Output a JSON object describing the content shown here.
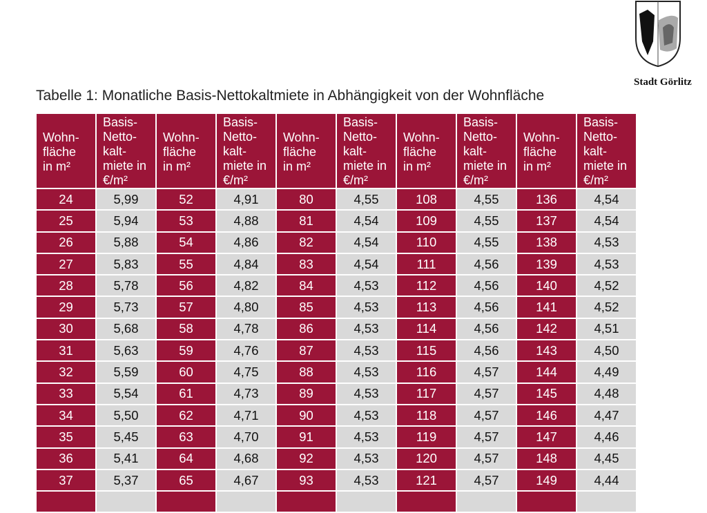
{
  "logo": {
    "text": "Stadt Görlitz"
  },
  "title": "Tabelle 1: Monatliche Basis-Nettokaltmiete in Abhängigkeit von der Wohnfläche",
  "table": {
    "headers": [
      "Wohn-fläche in m²",
      "Basis-Netto-kalt-miete in €/m²"
    ],
    "header_area_lines": [
      "Wohn-",
      "fläche",
      "in m²"
    ],
    "header_rent_lines": [
      "Basis-",
      "Netto-",
      "kalt-",
      "miete in",
      "€/m²"
    ],
    "rows": [
      [
        [
          "24",
          "5,99"
        ],
        [
          "52",
          "4,91"
        ],
        [
          "80",
          "4,55"
        ],
        [
          "108",
          "4,55"
        ],
        [
          "136",
          "4,54"
        ]
      ],
      [
        [
          "25",
          "5,94"
        ],
        [
          "53",
          "4,88"
        ],
        [
          "81",
          "4,54"
        ],
        [
          "109",
          "4,55"
        ],
        [
          "137",
          "4,54"
        ]
      ],
      [
        [
          "26",
          "5,88"
        ],
        [
          "54",
          "4,86"
        ],
        [
          "82",
          "4,54"
        ],
        [
          "110",
          "4,55"
        ],
        [
          "138",
          "4,53"
        ]
      ],
      [
        [
          "27",
          "5,83"
        ],
        [
          "55",
          "4,84"
        ],
        [
          "83",
          "4,54"
        ],
        [
          "111",
          "4,56"
        ],
        [
          "139",
          "4,53"
        ]
      ],
      [
        [
          "28",
          "5,78"
        ],
        [
          "56",
          "4,82"
        ],
        [
          "84",
          "4,53"
        ],
        [
          "112",
          "4,56"
        ],
        [
          "140",
          "4,52"
        ]
      ],
      [
        [
          "29",
          "5,73"
        ],
        [
          "57",
          "4,80"
        ],
        [
          "85",
          "4,53"
        ],
        [
          "113",
          "4,56"
        ],
        [
          "141",
          "4,52"
        ]
      ],
      [
        [
          "30",
          "5,68"
        ],
        [
          "58",
          "4,78"
        ],
        [
          "86",
          "4,53"
        ],
        [
          "114",
          "4,56"
        ],
        [
          "142",
          "4,51"
        ]
      ],
      [
        [
          "31",
          "5,63"
        ],
        [
          "59",
          "4,76"
        ],
        [
          "87",
          "4,53"
        ],
        [
          "115",
          "4,56"
        ],
        [
          "143",
          "4,50"
        ]
      ],
      [
        [
          "32",
          "5,59"
        ],
        [
          "60",
          "4,75"
        ],
        [
          "88",
          "4,53"
        ],
        [
          "116",
          "4,57"
        ],
        [
          "144",
          "4,49"
        ]
      ],
      [
        [
          "33",
          "5,54"
        ],
        [
          "61",
          "4,73"
        ],
        [
          "89",
          "4,53"
        ],
        [
          "117",
          "4,57"
        ],
        [
          "145",
          "4,48"
        ]
      ],
      [
        [
          "34",
          "5,50"
        ],
        [
          "62",
          "4,71"
        ],
        [
          "90",
          "4,53"
        ],
        [
          "118",
          "4,57"
        ],
        [
          "146",
          "4,47"
        ]
      ],
      [
        [
          "35",
          "5,45"
        ],
        [
          "63",
          "4,70"
        ],
        [
          "91",
          "4,53"
        ],
        [
          "119",
          "4,57"
        ],
        [
          "147",
          "4,46"
        ]
      ],
      [
        [
          "36",
          "5,41"
        ],
        [
          "64",
          "4,68"
        ],
        [
          "92",
          "4,53"
        ],
        [
          "120",
          "4,57"
        ],
        [
          "148",
          "4,45"
        ]
      ],
      [
        [
          "37",
          "5,37"
        ],
        [
          "65",
          "4,67"
        ],
        [
          "93",
          "4,53"
        ],
        [
          "121",
          "4,57"
        ],
        [
          "149",
          "4,44"
        ]
      ]
    ]
  }
}
